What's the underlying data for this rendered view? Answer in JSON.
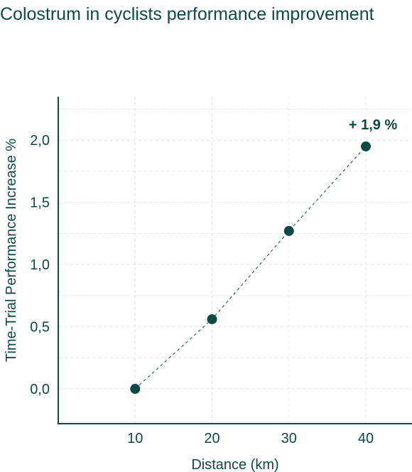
{
  "title": "Colostrum in cyclists performance improvement",
  "colors": {
    "primary": "#0e4a43",
    "grid": "#e4e4e4"
  },
  "chart_data": {
    "type": "line",
    "title": "Colostrum in cyclists performance improvement",
    "xlabel": "Distance (km)",
    "ylabel": "Time-Trial Performance Increase %",
    "x": [
      10,
      20,
      30,
      40
    ],
    "series": [
      {
        "values": [
          0.0,
          0.56,
          1.27,
          1.95
        ]
      }
    ],
    "x_ticks": [
      "10",
      "20",
      "30",
      "40"
    ],
    "y_ticks": [
      "0,0",
      "0,5",
      "1,0",
      "1,5",
      "2,0"
    ],
    "y_tick_values": [
      0,
      0.5,
      1.0,
      1.5,
      2.0
    ],
    "xlim": [
      0,
      46
    ],
    "ylim": [
      -0.28,
      2.35
    ],
    "grid": true,
    "line_style": "dashed",
    "annotation": {
      "text": "+ 1,9 %",
      "x": 40,
      "y": 1.95
    }
  }
}
